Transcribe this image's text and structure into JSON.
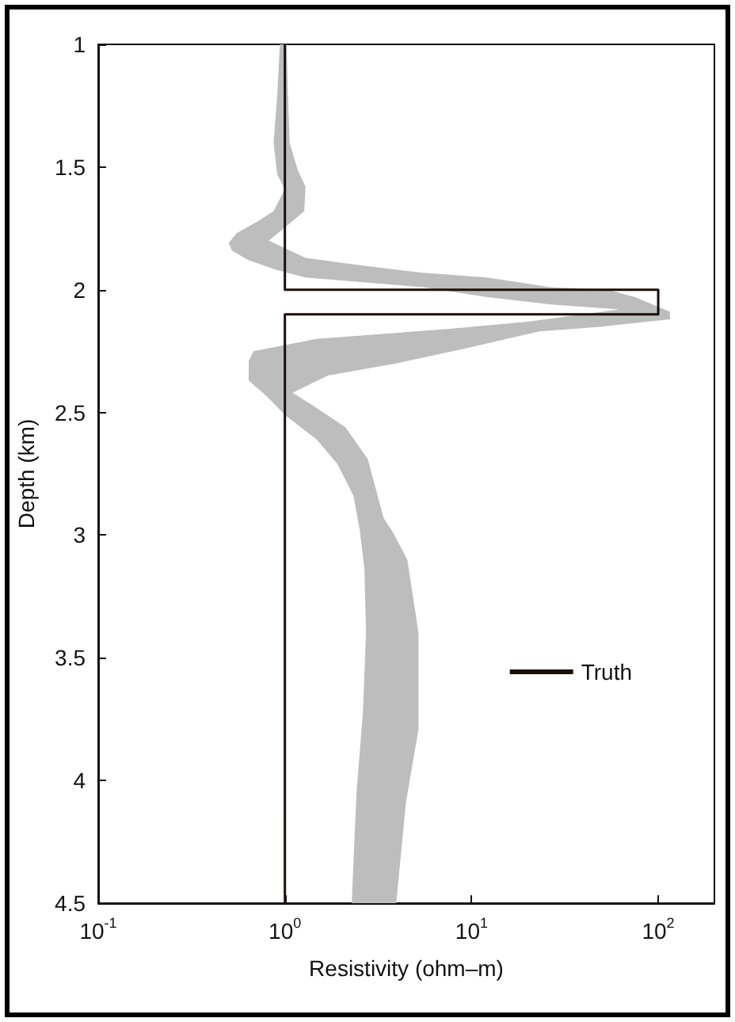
{
  "chart_data": {
    "type": "line",
    "xlabel": "Resistivity (ohm–m)",
    "ylabel": "Depth (km)",
    "log": "x",
    "grid": false,
    "legend": "right",
    "marker": "none",
    "line_style": "solid",
    "xlim": [
      0.1,
      200
    ],
    "xticks": [
      {
        "value": 0.1,
        "label": "10$^{-1}$"
      },
      {
        "value": 1,
        "label": "10$^{0}$"
      },
      {
        "value": 10,
        "label": "10$^{1}$"
      },
      {
        "value": 100,
        "label": "10$^{2}$"
      }
    ],
    "ylim": [
      4.5,
      1
    ],
    "yticks": [
      1,
      1.5,
      2,
      2.5,
      3,
      3.5,
      4,
      4.5
    ],
    "series": [
      {
        "type": "area",
        "color": "#bdbdbd",
        "x": [
          0.94,
          0.91,
          0.87,
          0.91,
          1.0,
          0.87,
          0.72,
          0.55,
          0.5,
          0.52,
          0.64,
          0.91,
          1.29,
          5.5,
          12.1,
          26.5,
          62,
          20,
          7.5,
          1.48,
          0.68,
          0.64,
          0.64,
          0.79,
          1.0,
          1.48,
          1.91,
          2.33,
          2.52,
          2.67,
          2.72,
          2.62,
          2.42,
          2.28,
          3.95,
          4.45,
          5.2,
          5.2,
          4.53,
          3.8,
          3.38,
          2.78,
          2.11,
          1.4,
          1.1,
          1.7,
          3.95,
          9.2,
          23.1,
          50.7,
          115.6,
          115.6,
          75.1,
          53.8,
          26.5,
          12.1,
          5.3,
          2.52,
          1.29,
          0.82,
          1.1,
          1.27,
          1.29,
          1.17,
          1.06,
          1.04,
          1.02
        ],
        "values": [
          1.0,
          1.21,
          1.4,
          1.53,
          1.59,
          1.68,
          1.72,
          1.77,
          1.81,
          1.84,
          1.88,
          1.92,
          1.95,
          1.99,
          2.03,
          2.06,
          2.08,
          2.13,
          2.16,
          2.2,
          2.25,
          2.29,
          2.37,
          2.43,
          2.51,
          2.61,
          2.71,
          2.84,
          2.98,
          3.14,
          3.4,
          3.72,
          4.05,
          4.5,
          4.5,
          4.09,
          3.79,
          3.4,
          3.1,
          2.99,
          2.93,
          2.69,
          2.56,
          2.47,
          2.42,
          2.35,
          2.3,
          2.24,
          2.17,
          2.15,
          2.12,
          2.09,
          2.03,
          2.0,
          1.99,
          1.95,
          1.93,
          1.9,
          1.87,
          1.8,
          1.72,
          1.68,
          1.58,
          1.51,
          1.4,
          1.21,
          1.0
        ]
      },
      {
        "name": "Truth",
        "color": "#1a0f0a",
        "x": [
          1,
          1,
          100,
          100,
          1,
          1
        ],
        "values": [
          1,
          2,
          2,
          2.1,
          2.1,
          4.5
        ]
      }
    ]
  }
}
